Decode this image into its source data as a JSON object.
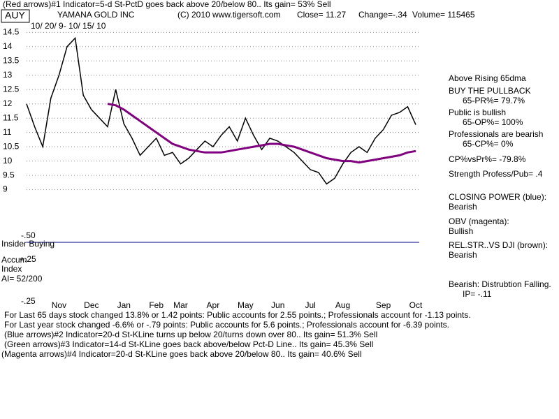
{
  "header": {
    "signal_line": "(Red arrows)#1 Indicator=5-d St-PctD  goes back above 20/below 80.. Its gain= 53% Sell",
    "ticker": "AUY",
    "company": "YAMANA GOLD INC",
    "copyright": "(C) 2010 www.tigersoft.com",
    "close": "Close= 11.27",
    "change": "Change=-.34",
    "volume": "Volume= 115465",
    "date_range": "10/ 20/ 9- 10/ 15/ 10"
  },
  "chart_data": {
    "type": "line",
    "categories": [
      null,
      null,
      null,
      null,
      "Nov",
      null,
      null,
      null,
      "Dec",
      null,
      null,
      null,
      "Jan",
      null,
      null,
      null,
      "Feb",
      null,
      null,
      "Mar",
      null,
      null,
      null,
      "Apr",
      null,
      null,
      null,
      "May",
      null,
      null,
      null,
      "Jun",
      null,
      null,
      null,
      "Jul",
      null,
      null,
      null,
      "Aug",
      null,
      null,
      null,
      null,
      "Sep",
      null,
      null,
      null,
      "Oct"
    ],
    "series": [
      {
        "name": "AUY",
        "color": "#000000",
        "values": [
          12,
          11.2,
          10.5,
          12.2,
          13,
          14,
          14.3,
          12.3,
          11.8,
          11.5,
          11.2,
          12.5,
          11.3,
          10.8,
          10.2,
          10.5,
          10.8,
          10.2,
          10.3,
          9.9,
          10.1,
          10.4,
          10.7,
          10.5,
          10.9,
          11.2,
          10.7,
          11.5,
          10.9,
          10.4,
          10.8,
          10.7,
          10.5,
          10.3,
          10,
          9.7,
          9.6,
          9.2,
          9.4,
          9.9,
          10.3,
          10.5,
          10.3,
          10.8,
          11.1,
          11.6,
          11.7,
          11.9,
          11.27
        ]
      },
      {
        "name": "65dma",
        "color": "#800080",
        "values": [
          null,
          null,
          null,
          null,
          null,
          null,
          null,
          null,
          null,
          null,
          12,
          11.95,
          11.8,
          11.6,
          11.4,
          11.2,
          11,
          10.8,
          10.6,
          10.5,
          10.4,
          10.35,
          10.3,
          10.3,
          10.3,
          10.35,
          10.4,
          10.45,
          10.5,
          10.55,
          10.6,
          10.6,
          10.55,
          10.5,
          10.4,
          10.3,
          10.2,
          10.1,
          10.05,
          10,
          10,
          9.95,
          10,
          10.05,
          10.1,
          10.15,
          10.2,
          10.3,
          10.35
        ]
      }
    ],
    "ylim": [
      8.55,
      14.85
    ],
    "yticks": [
      9,
      9.5,
      10,
      10.5,
      11,
      11.5,
      12,
      12.5,
      13,
      13.5,
      14,
      14.5
    ],
    "grid": true
  },
  "right_panel": [
    "Above Rising 65dma",
    "BUY THE PULLBACK",
    "65-PR%= 79.7%",
    "Public is bullish",
    "65-OP%= 100%",
    "Professionals are bearish",
    "65-CP%= 0%",
    "CP%vsPr%= -79.8%",
    "Strength Profess/Pub= .4",
    "CLOSING POWER (blue):",
    "Bearish",
    "OBV (magenta):",
    "Bullish",
    "REL.STR..VS DJI (brown):",
    "Bearish",
    "Bearish: Distrubtion Falling.",
    "IP= -.11"
  ],
  "lower_panel": {
    "insider": "Insider Buying",
    "accum": "Accum",
    "index": "Index",
    "ai": "AI= 52/200",
    "plus": "+.25",
    "minus": "-.25",
    "minus50": "-.50"
  },
  "footer": [
    "For Last 65 days stock changed  13.8% or  1.42 points:  Public accounts for  2.55 points.;  Professionals account for -1.13 points.",
    "For Last year stock changed -6.6% or -.79 points:  Public accounts for  5.6 points.;  Professionals account for -6.39 points.",
    "(Blue arrows)#2 Indicator=20-d St-KLine turns up below 20/turns down over 80.. Its gain= 51.3% Sell",
    "(Green arrows)#3 Indicator=14-d St-KLine goes back above/below Pct-D Line.. Its gain= 45.3% Sell",
    "(Magenta arrows)#4 Indicator=20-d St-KLine goes back above 20/below 80.. Its gain= 40.6% Sell"
  ]
}
